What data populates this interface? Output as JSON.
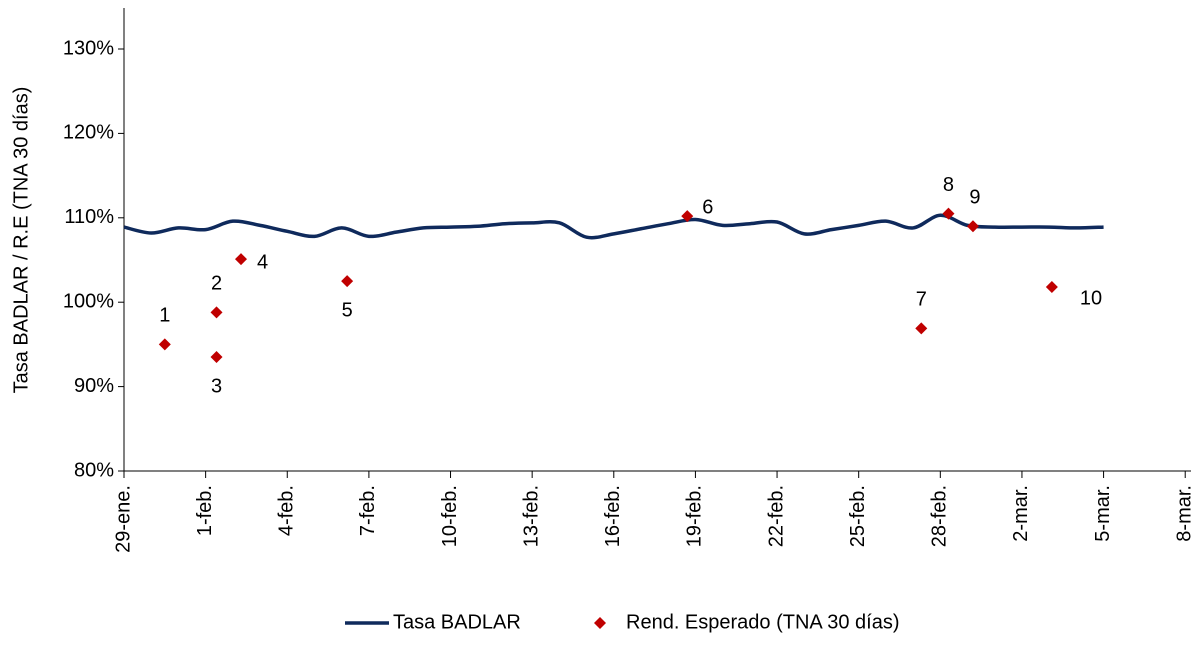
{
  "chart_data": {
    "type": "line",
    "y_label": "Tasa BADLAR / R.E (TNA 30 días)",
    "xlim": [
      0,
      38
    ],
    "xticks": [
      {
        "value": 0,
        "label": "29-ene."
      },
      {
        "value": 3,
        "label": "1-feb."
      },
      {
        "value": 6,
        "label": "4-feb."
      },
      {
        "value": 9,
        "label": "7-feb."
      },
      {
        "value": 12,
        "label": "10-feb."
      },
      {
        "value": 15,
        "label": "13-feb."
      },
      {
        "value": 18,
        "label": "16-feb."
      },
      {
        "value": 21,
        "label": "19-feb."
      },
      {
        "value": 24,
        "label": "22-feb."
      },
      {
        "value": 27,
        "label": "25-feb."
      },
      {
        "value": 30,
        "label": "28-feb."
      },
      {
        "value": 33,
        "label": "2-mar."
      },
      {
        "value": 36,
        "label": "5-mar."
      },
      {
        "value": 39,
        "label": "8-mar."
      }
    ],
    "ylim": [
      80,
      130
    ],
    "yticks": [
      {
        "value": 80,
        "label": "80%"
      },
      {
        "value": 90,
        "label": "90%"
      },
      {
        "value": 100,
        "label": "100%"
      },
      {
        "value": 110,
        "label": "110%"
      },
      {
        "value": 120,
        "label": "120%"
      },
      {
        "value": 130,
        "label": "130%"
      }
    ],
    "grid": false,
    "legend": "bottom",
    "series": [
      {
        "name": "Tasa BADLAR",
        "type": "line",
        "color": "#0f2a5c",
        "x": [
          0,
          1,
          2,
          3,
          4,
          5,
          6,
          7,
          8,
          9,
          10,
          11,
          12,
          13,
          14,
          15,
          16,
          17,
          18,
          19,
          20,
          21,
          22,
          23,
          24,
          25,
          26,
          27,
          28,
          29,
          30,
          31,
          32,
          33,
          34,
          35,
          36
        ],
        "values": [
          108.9,
          108.2,
          108.8,
          108.6,
          109.6,
          109.1,
          108.4,
          107.8,
          108.8,
          107.8,
          108.3,
          108.8,
          108.9,
          109.0,
          109.3,
          109.4,
          109.4,
          107.7,
          108.1,
          108.7,
          109.3,
          109.8,
          109.1,
          109.3,
          109.5,
          108.1,
          108.6,
          109.1,
          109.6,
          108.8,
          110.3,
          109.1,
          108.9,
          108.9,
          108.9,
          108.8,
          108.9
        ]
      },
      {
        "name": "Rend. Esperado (TNA 30 días)",
        "type": "scatter",
        "color": "#c00000",
        "x": [
          1.5,
          3.4,
          3.4,
          4.3,
          8.2,
          20.7,
          29.3,
          30.3,
          31.2,
          34.1
        ],
        "values": [
          95.0,
          98.8,
          93.5,
          105.1,
          102.5,
          110.2,
          96.9,
          110.5,
          109.0,
          101.8
        ],
        "point_labels": [
          "1",
          "2",
          "3",
          "4",
          "5",
          "6",
          "7",
          "8",
          "9",
          "10"
        ]
      }
    ]
  }
}
